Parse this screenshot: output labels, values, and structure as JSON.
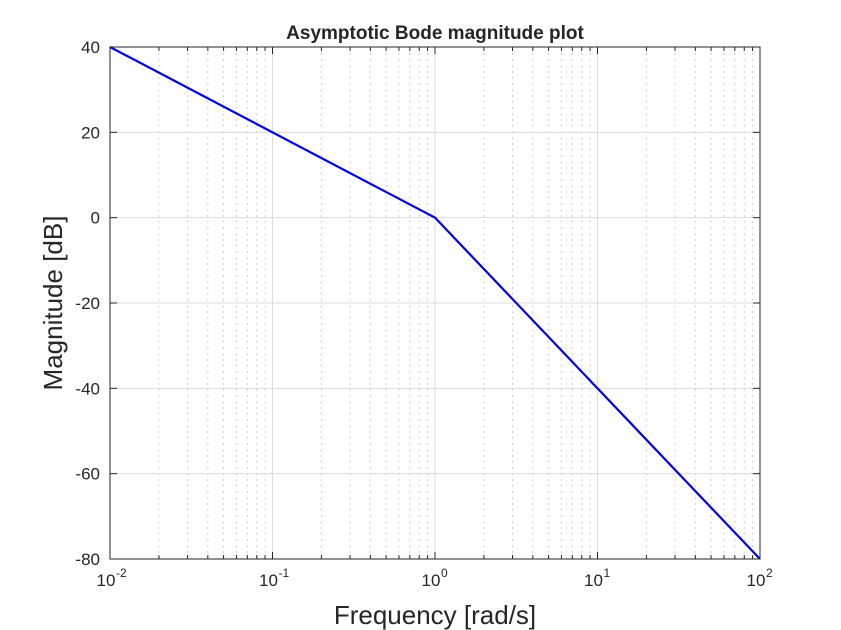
{
  "chart_data": {
    "type": "line",
    "title": "Asymptotic Bode magnitude plot",
    "xlabel": "Frequency [rad/s]",
    "ylabel": "Magnitude [dB]",
    "xscale": "log",
    "xlim": [
      0.01,
      100
    ],
    "ylim": [
      -80,
      40
    ],
    "grid": true,
    "minor_grid": true,
    "x_ticks": [
      {
        "value": 0.01,
        "base": "10",
        "exp": "-2"
      },
      {
        "value": 0.1,
        "base": "10",
        "exp": "-1"
      },
      {
        "value": 1,
        "base": "10",
        "exp": "0"
      },
      {
        "value": 10,
        "base": "10",
        "exp": "1"
      },
      {
        "value": 100,
        "base": "10",
        "exp": "2"
      }
    ],
    "y_ticks": [
      {
        "value": 40,
        "label": "40"
      },
      {
        "value": 20,
        "label": "20"
      },
      {
        "value": 0,
        "label": "0"
      },
      {
        "value": -20,
        "label": "-20"
      },
      {
        "value": -40,
        "label": "-40"
      },
      {
        "value": -60,
        "label": "-60"
      },
      {
        "value": -80,
        "label": "-80"
      }
    ],
    "series": [
      {
        "color": "#0000ee",
        "x": [
          0.01,
          1,
          100
        ],
        "y": [
          40,
          0,
          -80
        ]
      }
    ]
  }
}
